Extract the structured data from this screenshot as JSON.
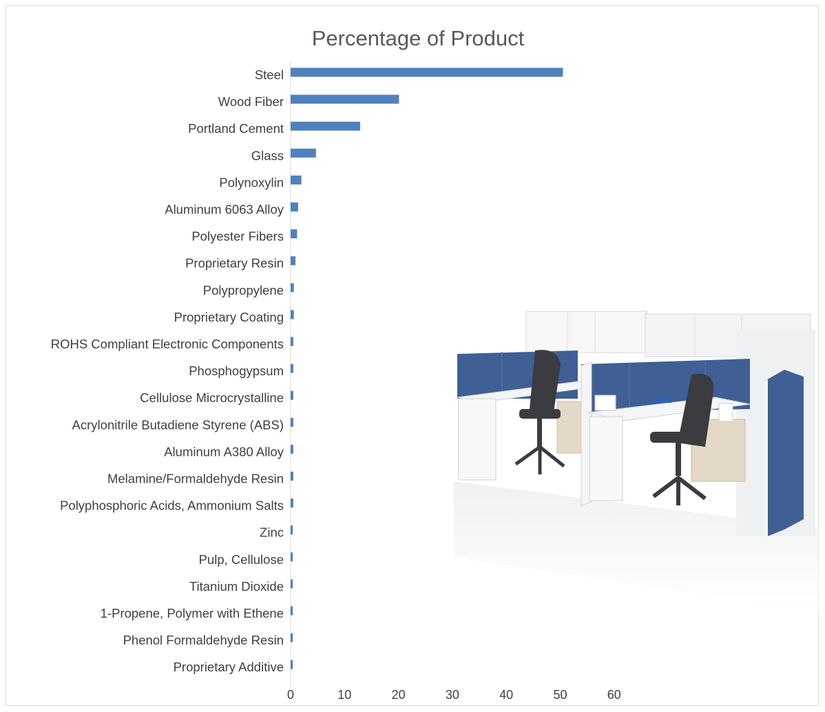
{
  "chart_data": {
    "type": "bar",
    "orientation": "horizontal",
    "title": "Percentage of Product",
    "xlabel": "",
    "ylabel": "",
    "xlim": [
      0,
      60
    ],
    "xticks": [
      "0",
      "10",
      "20",
      "30",
      "40",
      "50",
      "60"
    ],
    "grid": false,
    "legend": "none",
    "bar_color": "#4f81bd",
    "categories": [
      "Steel",
      "Wood Fiber",
      "Portland Cement",
      "Glass",
      "Polynoxylin",
      "Aluminum 6063 Alloy",
      "Polyester Fibers",
      "Proprietary Resin",
      "Polypropylene",
      "Proprietary Coating",
      "ROHS Compliant Electronic Components",
      "Phosphogypsum",
      "Cellulose Microcrystalline",
      "Acrylonitrile Butadiene Styrene (ABS)",
      "Aluminum A380 Alloy",
      "Melamine/Formaldehyde Resin",
      "Polyphosphoric Acids, Ammonium Salts",
      "Zinc",
      "Pulp, Cellulose",
      "Titanium Dioxide",
      "1-Propene, Polymer with Ethene",
      "Phenol Formaldehyde Resin",
      "Proprietary Additive"
    ],
    "values": [
      50.5,
      20.1,
      12.9,
      4.7,
      2.0,
      1.4,
      1.2,
      0.9,
      0.6,
      0.6,
      0.5,
      0.5,
      0.5,
      0.5,
      0.5,
      0.5,
      0.5,
      0.4,
      0.4,
      0.4,
      0.4,
      0.4,
      0.4
    ]
  },
  "illustration": {
    "description_icon": "office-workstation-photo",
    "panel_color": "#3f5f95",
    "surface_color": "#f4f5f7",
    "wood_color": "#e4d8c6",
    "chair_color": "#3a3c40"
  }
}
